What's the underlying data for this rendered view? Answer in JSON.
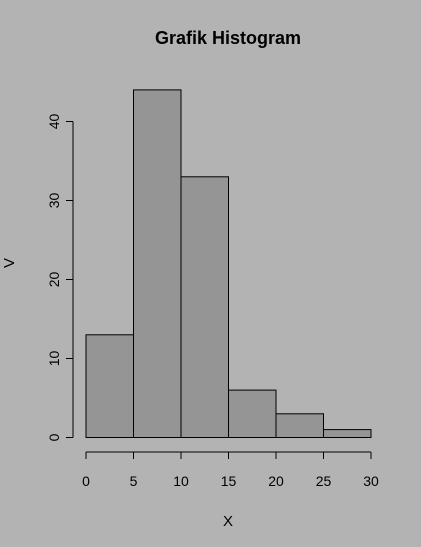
{
  "chart_data": {
    "type": "bar",
    "title": "Grafik Histogram",
    "xlabel": "X",
    "ylabel": "V",
    "bins": [
      [
        0,
        5
      ],
      [
        5,
        10
      ],
      [
        10,
        15
      ],
      [
        15,
        20
      ],
      [
        20,
        25
      ],
      [
        25,
        30
      ]
    ],
    "values": [
      13,
      44,
      33,
      6,
      3,
      1
    ],
    "xlim": [
      0,
      30
    ],
    "ylim": [
      0,
      44
    ],
    "xticks": [
      0,
      5,
      10,
      15,
      20,
      25,
      30
    ],
    "yticks": [
      0,
      10,
      20,
      30,
      40
    ],
    "grid": false,
    "legend": "none",
    "colors": {
      "bar_fill": "#959595",
      "bar_stroke": "#000000",
      "background": "#b3b3b3"
    }
  }
}
